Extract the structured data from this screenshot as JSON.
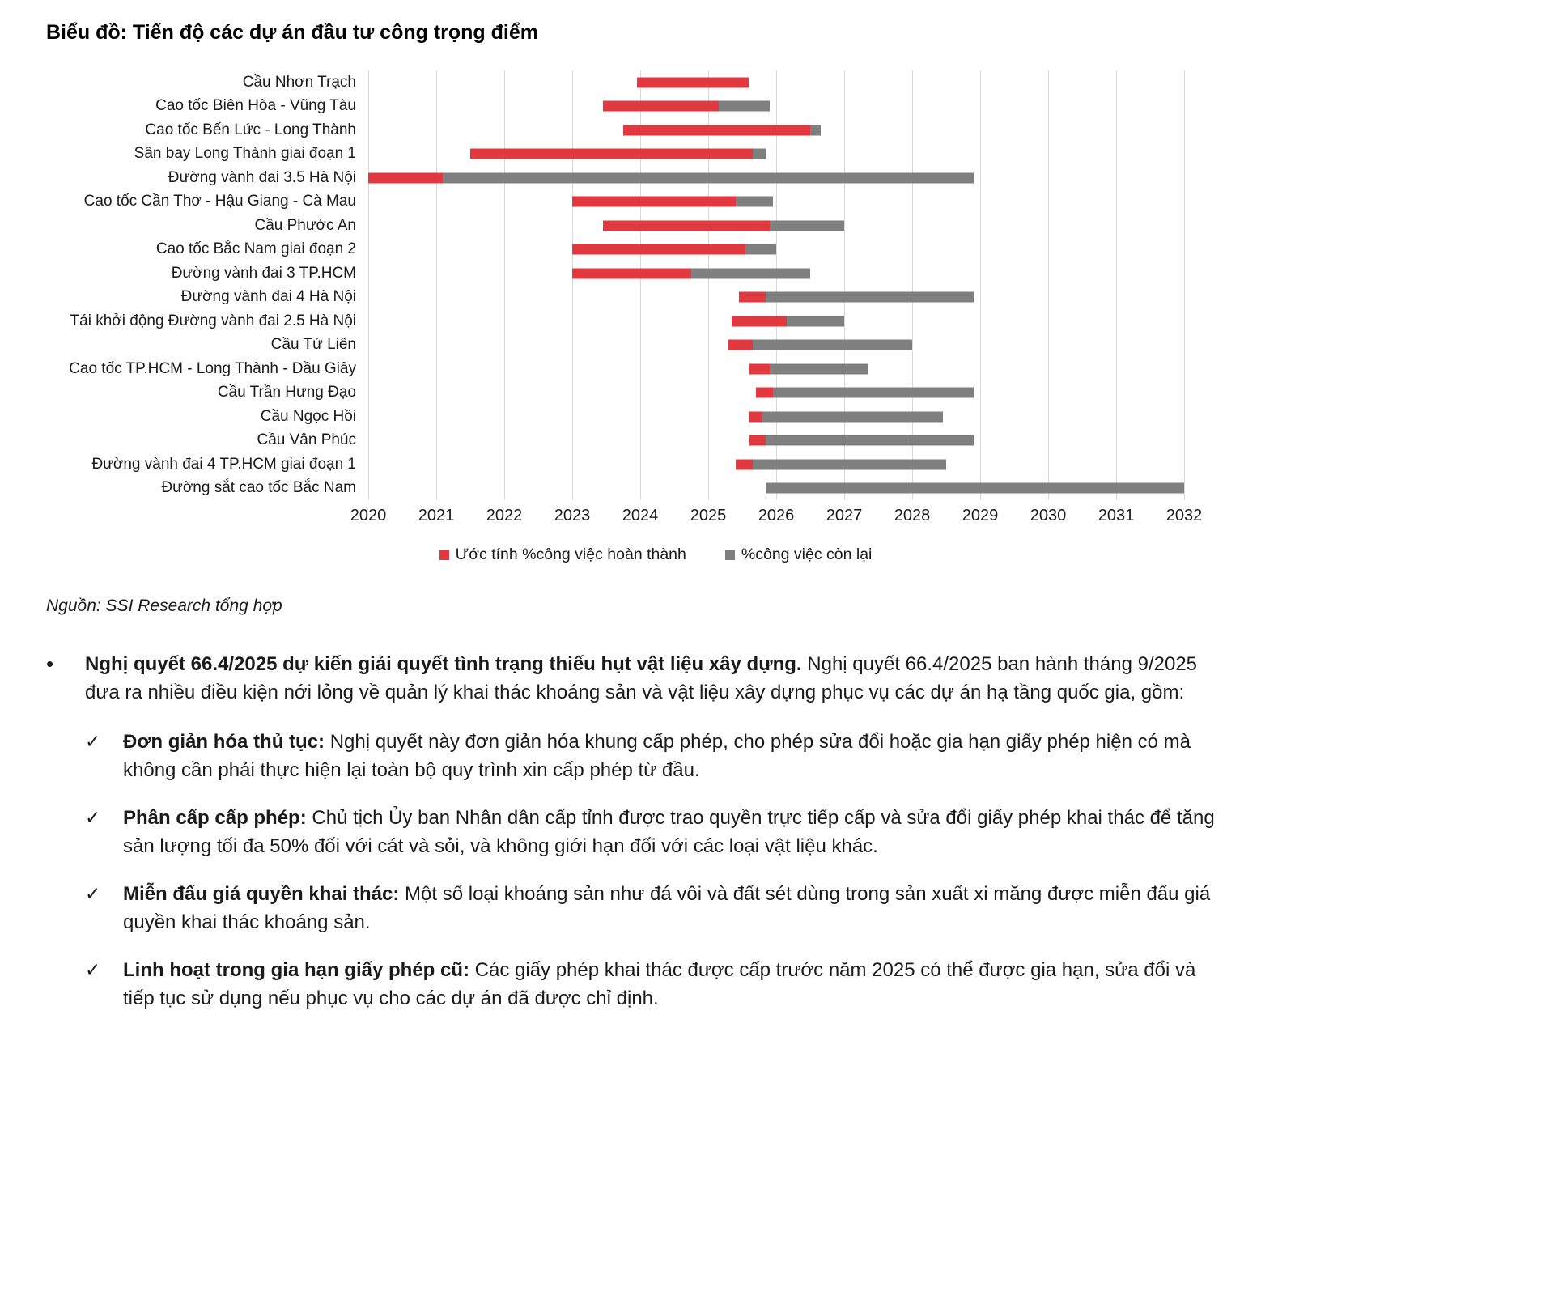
{
  "page": {
    "source": "Nguồn: SSI Research tổng hợp"
  },
  "chart_data": {
    "type": "bar",
    "subtype": "gantt",
    "orientation": "horizontal",
    "title": "Biểu đồ: Tiến độ các dự án đầu tư công trọng điểm",
    "xlabel": "",
    "ylabel": "",
    "grid": "vertical-yearly",
    "legend_position": "bottom-center",
    "x_axis": {
      "min": 2020,
      "max": 2032,
      "ticks": [
        2020,
        2021,
        2022,
        2023,
        2024,
        2025,
        2026,
        2027,
        2028,
        2029,
        2030,
        2031,
        2032
      ]
    },
    "colors": {
      "completed": "#e2383f",
      "remaining": "#7f7f7f"
    },
    "legend": [
      {
        "label": "Ước tính %công việc hoàn thành",
        "color": "#e2383f"
      },
      {
        "label": "%công việc còn lại",
        "color": "#7f7f7f"
      }
    ],
    "projects": [
      {
        "name": "Cầu Nhơn Trạch",
        "start": 2023.95,
        "complete_until": 2025.6,
        "end": 2025.6
      },
      {
        "name": "Cao tốc Biên Hòa - Vũng Tàu",
        "start": 2023.45,
        "complete_until": 2025.15,
        "end": 2025.9
      },
      {
        "name": "Cao tốc Bến Lức - Long Thành",
        "start": 2023.75,
        "complete_until": 2026.5,
        "end": 2026.65
      },
      {
        "name": "Sân bay Long Thành giai đoạn 1",
        "start": 2021.5,
        "complete_until": 2025.65,
        "end": 2025.85
      },
      {
        "name": "Đường vành đai 3.5 Hà Nội",
        "start": 2020.0,
        "complete_until": 2021.1,
        "end": 2028.9
      },
      {
        "name": "Cao tốc Cần Thơ - Hậu Giang - Cà Mau",
        "start": 2023.0,
        "complete_until": 2025.4,
        "end": 2025.95
      },
      {
        "name": "Cầu Phước An",
        "start": 2023.45,
        "complete_until": 2025.9,
        "end": 2027.0
      },
      {
        "name": "Cao tốc Bắc Nam giai đoạn 2",
        "start": 2023.0,
        "complete_until": 2025.55,
        "end": 2026.0
      },
      {
        "name": "Đường vành đai 3 TP.HCM",
        "start": 2023.0,
        "complete_until": 2024.75,
        "end": 2026.5
      },
      {
        "name": "Đường vành đai 4 Hà Nội",
        "start": 2025.45,
        "complete_until": 2025.85,
        "end": 2028.9
      },
      {
        "name": "Tái khởi động Đường vành đai 2.5 Hà Nội",
        "start": 2025.35,
        "complete_until": 2026.15,
        "end": 2027.0
      },
      {
        "name": "Cầu Tứ Liên",
        "start": 2025.3,
        "complete_until": 2025.65,
        "end": 2028.0
      },
      {
        "name": "Cao tốc TP.HCM - Long Thành - Dầu Giây",
        "start": 2025.6,
        "complete_until": 2025.9,
        "end": 2027.35
      },
      {
        "name": "Cầu Trần Hưng Đạo",
        "start": 2025.7,
        "complete_until": 2025.95,
        "end": 2028.9
      },
      {
        "name": "Cầu Ngọc Hồi",
        "start": 2025.6,
        "complete_until": 2025.8,
        "end": 2028.45
      },
      {
        "name": "Cầu Vân Phúc",
        "start": 2025.6,
        "complete_until": 2025.85,
        "end": 2028.9
      },
      {
        "name": "Đường vành đai 4 TP.HCM giai đoạn 1",
        "start": 2025.4,
        "complete_until": 2025.65,
        "end": 2028.5
      },
      {
        "name": "Đường sắt cao tốc Bắc Nam",
        "start": 2025.85,
        "complete_until": 2025.85,
        "end": 2032.0
      }
    ]
  },
  "commentary": {
    "bullet_icon": "•",
    "check_icon": "✓",
    "bullet": {
      "bold": "Nghị quyết 66.4/2025 dự kiến giải quyết tình trạng thiếu hụt vật liệu xây dựng.",
      "text": " Nghị quyết 66.4/2025 ban hành tháng 9/2025 đưa ra nhiều điều kiện nới lỏng về quản lý khai thác khoáng sản và vật liệu xây dựng phục vụ các dự án hạ tầng quốc gia, gồm:"
    },
    "checklist": [
      {
        "bold": "Đơn giản hóa thủ tục:",
        "text": " Nghị quyết này đơn giản hóa khung cấp phép, cho phép sửa đổi hoặc gia hạn giấy phép hiện có mà không cần phải thực hiện lại toàn bộ quy trình xin cấp phép từ đầu."
      },
      {
        "bold": "Phân cấp cấp phép:",
        "text": " Chủ tịch Ủy ban Nhân dân cấp tỉnh được trao quyền trực tiếp cấp và sửa đổi giấy phép khai thác để tăng sản lượng tối đa 50% đối với cát và sỏi, và không giới hạn đối với các loại vật liệu khác."
      },
      {
        "bold": "Miễn đấu giá quyền khai thác:",
        "text": " Một số loại khoáng sản như đá vôi và đất sét dùng trong sản xuất xi măng được miễn đấu giá quyền khai thác khoáng sản."
      },
      {
        "bold": "Linh hoạt trong gia hạn giấy phép cũ:",
        "text": " Các giấy phép khai thác được cấp trước năm 2025 có thể được gia hạn, sửa đổi và tiếp tục sử dụng nếu phục vụ cho các dự án đã được chỉ định."
      }
    ]
  }
}
